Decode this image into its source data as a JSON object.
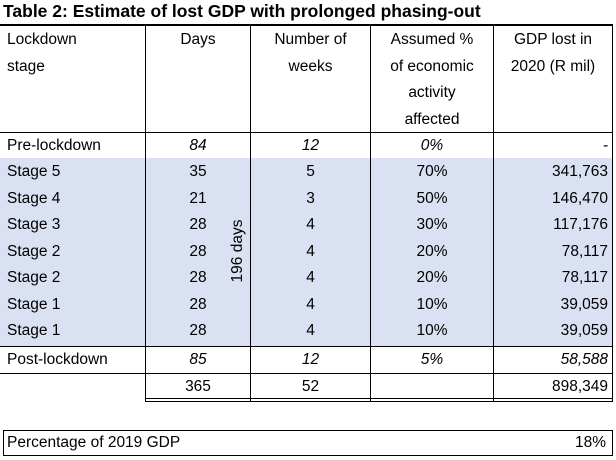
{
  "title": "Table 2: Estimate of lost GDP with prolonged phasing-out",
  "headers": {
    "stage": [
      "Lockdown",
      "stage"
    ],
    "days": [
      "Days"
    ],
    "weeks": [
      "Number of",
      "weeks"
    ],
    "pct": [
      "Assumed %",
      "of economic",
      "activity",
      "affected"
    ],
    "gdp": [
      "GDP lost in",
      "2020 (R mil)"
    ]
  },
  "rows": [
    {
      "stage": "Pre-lockdown",
      "days": "84",
      "weeks": "12",
      "pct": "0%",
      "gdp": "-"
    },
    {
      "stage": "Stage 5",
      "days": "35",
      "weeks": "5",
      "pct": "70%",
      "gdp": "341,763"
    },
    {
      "stage": "Stage 4",
      "days": "21",
      "weeks": "3",
      "pct": "50%",
      "gdp": "146,470"
    },
    {
      "stage": "Stage 3",
      "days": "28",
      "weeks": "4",
      "pct": "30%",
      "gdp": "117,176"
    },
    {
      "stage": "Stage 2",
      "days": "28",
      "weeks": "4",
      "pct": "20%",
      "gdp": "78,117"
    },
    {
      "stage": "Stage 2",
      "days": "28",
      "weeks": "4",
      "pct": "20%",
      "gdp": "78,117"
    },
    {
      "stage": "Stage 1",
      "days": "28",
      "weeks": "4",
      "pct": "10%",
      "gdp": "39,059"
    },
    {
      "stage": "Stage 1",
      "days": "28",
      "weeks": "4",
      "pct": "10%",
      "gdp": "39,059"
    },
    {
      "stage": "Post-lockdown",
      "days": "85",
      "weeks": "12",
      "pct": "5%",
      "gdp": "58,588"
    }
  ],
  "lockdown_span_label": "196 days",
  "totals": {
    "days": "365",
    "weeks": "52",
    "gdp": "898,349"
  },
  "footer": {
    "label": "Percentage of 2019 GDP",
    "value": "18%"
  },
  "colors": {
    "shade": "#d9e1f2"
  }
}
